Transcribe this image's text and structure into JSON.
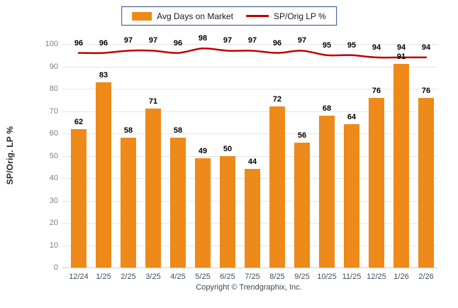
{
  "chart_data": {
    "type": "bar",
    "subtype": "bar+line combo",
    "categories": [
      "12/24",
      "1/25",
      "2/25",
      "3/25",
      "4/25",
      "5/25",
      "6/25",
      "7/25",
      "8/25",
      "9/25",
      "10/25",
      "11/25",
      "12/25",
      "1/26",
      "2/26"
    ],
    "series": [
      {
        "name": "Avg Days on Market",
        "type": "bar",
        "color": "#ed8a19",
        "values": [
          62,
          83,
          58,
          71,
          58,
          49,
          50,
          44,
          72,
          56,
          68,
          64,
          76,
          91,
          76
        ]
      },
      {
        "name": "SP/Orig LP %",
        "type": "line",
        "color": "#c00000",
        "values": [
          96,
          96,
          97,
          97,
          96,
          98,
          97,
          97,
          96,
          97,
          95,
          95,
          94,
          94,
          94
        ]
      }
    ],
    "title": "",
    "xlabel": "",
    "ylabel": "SP/Orig. LP %",
    "ylim": [
      0,
      100
    ],
    "ytick_step": 10,
    "grid": true,
    "legend_position": "top",
    "data_labels": true
  },
  "footer": {
    "copyright": "Copyright © Trendgraphix, Inc."
  }
}
